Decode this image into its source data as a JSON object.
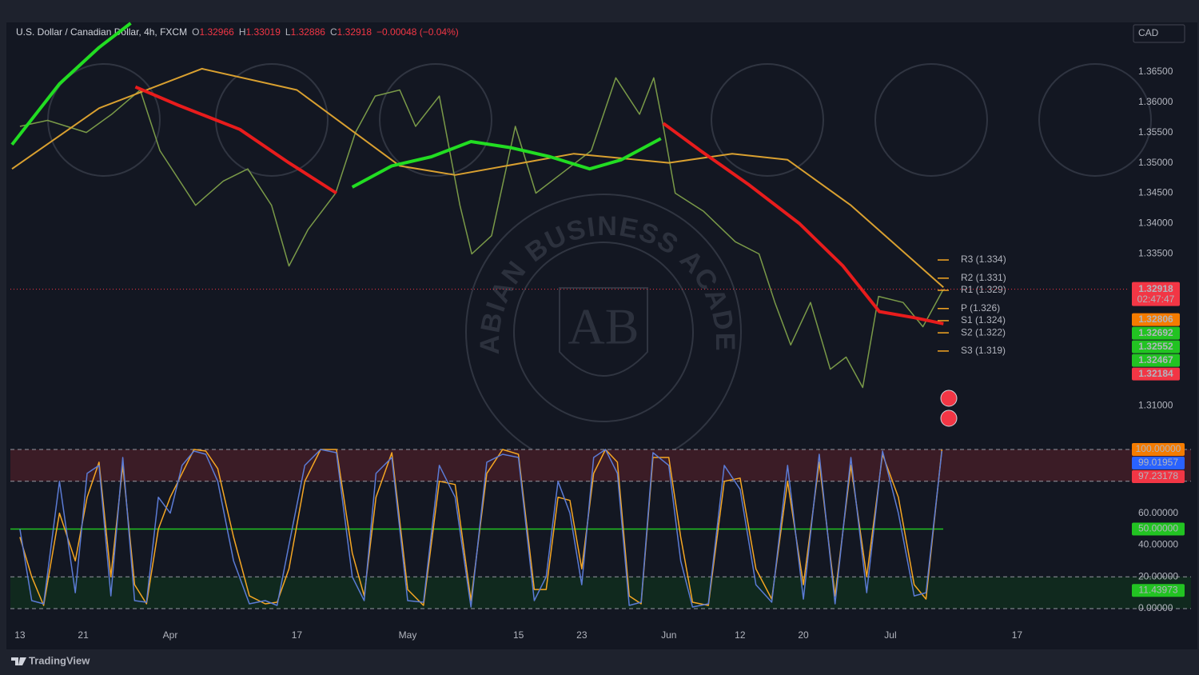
{
  "header": {
    "symbol": "U.S. Dollar / Canadian Dollar, 4h, FXCM",
    "ohlc": [
      {
        "label": "O",
        "value": 1.32966
      },
      {
        "label": "H",
        "value": 1.33019
      },
      {
        "label": "L",
        "value": 1.32886
      },
      {
        "label": "C",
        "value": 1.32918
      }
    ],
    "change": "−0.00048 (−0.04%)",
    "currency": "CAD"
  },
  "chart_data": [
    {
      "type": "line",
      "xlim": [
        -1.2,
        139.9
      ],
      "xticks": [
        {
          "value": 0,
          "label": "13"
        },
        {
          "value": 8,
          "label": "21"
        },
        {
          "value": 19,
          "label": "Apr"
        },
        {
          "value": 35,
          "label": "17"
        },
        {
          "value": 49,
          "label": "May"
        },
        {
          "value": 63,
          "label": "15"
        },
        {
          "value": 71,
          "label": "23"
        },
        {
          "value": 82,
          "label": "Jun"
        },
        {
          "value": 91,
          "label": "12"
        },
        {
          "value": 99,
          "label": "20"
        },
        {
          "value": 110,
          "label": "Jul"
        },
        {
          "value": 126,
          "label": "17"
        }
      ],
      "ylim": [
        1.307,
        1.373
      ],
      "yticks": [
        {
          "value": 1.365,
          "label": "1.36500"
        },
        {
          "value": 1.36,
          "label": "1.36000"
        },
        {
          "value": 1.355,
          "label": "1.35500"
        },
        {
          "value": 1.35,
          "label": "1.35000"
        },
        {
          "value": 1.345,
          "label": "1.34500"
        },
        {
          "value": 1.34,
          "label": "1.34000"
        },
        {
          "value": 1.335,
          "label": "1.33500"
        },
        {
          "value": 1.31,
          "label": "1.31000"
        }
      ],
      "grid": false,
      "series": [
        {
          "color": "#7a9a48",
          "width": 1.5,
          "x": [
            0,
            3.5,
            8.4,
            11.6,
            15.2,
            17.7,
            22.2,
            25.7,
            28.8,
            31.8,
            34,
            36.4,
            39.9,
            42.4,
            44.9,
            48,
            50,
            53,
            55.6,
            57.1,
            59.6,
            62.6,
            65.2,
            68.2,
            72.2,
            75.3,
            78.3,
            80.1,
            81.3,
            82.8,
            86.4,
            90.4,
            93.4,
            95.4,
            97.4,
            99.9,
            102.4,
            104.4,
            106.5,
            108.5,
            111.6,
            114.1,
            116.7
          ],
          "values": [
            1.356,
            1.357,
            1.355,
            1.358,
            1.362,
            1.352,
            1.343,
            1.347,
            1.349,
            1.343,
            1.333,
            1.339,
            1.345,
            1.355,
            1.361,
            1.362,
            1.356,
            1.361,
            1.343,
            1.335,
            1.338,
            1.356,
            1.345,
            1.348,
            1.352,
            1.364,
            1.358,
            1.364,
            1.356,
            1.345,
            1.342,
            1.337,
            1.335,
            1.327,
            1.32,
            1.327,
            1.316,
            1.318,
            1.313,
            1.328,
            1.327,
            1.323,
            1.3292
          ]
        },
        {
          "color": "#d9a030",
          "width": 2,
          "x": [
            -1,
            10,
            23,
            35,
            48,
            55,
            70,
            82,
            90,
            97,
            105,
            116.7
          ],
          "values": [
            1.349,
            1.359,
            1.3655,
            1.362,
            1.3495,
            1.348,
            1.3515,
            1.35,
            1.3515,
            1.3505,
            1.343,
            1.3295
          ]
        },
        {
          "color": "#e81c1c",
          "width": 4,
          "x": [
            14.6,
            20,
            27.8,
            34,
            40,
            60,
            81.3,
            86,
            92,
            98.5,
            104,
            108.6,
            113,
            116.7
          ],
          "values": [
            1.3625,
            1.3595,
            1.3555,
            1.35,
            1.345,
            null,
            1.3565,
            1.352,
            1.3465,
            1.34,
            1.333,
            1.3255,
            1.3245,
            1.3235
          ]
        },
        {
          "color": "#22dd22",
          "width": 4,
          "x": [
            -1,
            5,
            10,
            14,
            28,
            42,
            47,
            52,
            57,
            62,
            67,
            72,
            76,
            81
          ],
          "values": [
            1.353,
            1.363,
            1.369,
            1.373,
            null,
            1.346,
            1.3495,
            1.351,
            1.3535,
            1.3525,
            1.351,
            1.349,
            1.3505,
            1.354
          ]
        }
      ],
      "last_price": {
        "value": 1.32918,
        "countdown": "02:47:47",
        "color": "#f23645"
      },
      "price_tags": [
        {
          "value": 1.32806,
          "color": "#f57c00"
        },
        {
          "value": 1.32692,
          "color": "#22c322"
        },
        {
          "value": 1.32552,
          "color": "#22c322"
        },
        {
          "value": 1.32467,
          "color": "#22c322"
        },
        {
          "value": 1.32184,
          "color": "#f23645"
        }
      ],
      "pivots": [
        {
          "value": 1.334,
          "label": "R3 (1.334)"
        },
        {
          "value": 1.331,
          "label": "R2 (1.331)"
        },
        {
          "value": 1.329,
          "label": "R1 (1.329)"
        },
        {
          "value": 1.326,
          "label": "P (1.326)"
        },
        {
          "value": 1.324,
          "label": "S1 (1.324)"
        },
        {
          "value": 1.322,
          "label": "S2 (1.322)"
        },
        {
          "value": 1.319,
          "label": "S3 (1.319)"
        }
      ]
    },
    {
      "type": "line",
      "xlim": [
        -1.2,
        139.9
      ],
      "ylim": [
        0,
        100
      ],
      "yticks": [
        {
          "value": 60,
          "label": "60.00000"
        },
        {
          "value": 40,
          "label": "40.00000"
        },
        {
          "value": 20,
          "label": "20.00000"
        },
        {
          "value": 0,
          "label": "0.00000"
        }
      ],
      "levels": [
        100,
        80,
        20,
        0
      ],
      "series": [
        {
          "color": "#f5a623",
          "width": 1.5,
          "x": [
            0,
            1.5,
            3,
            5,
            7,
            8.5,
            10,
            11.5,
            13,
            14.5,
            16,
            17.5,
            19,
            20.5,
            22,
            23.5,
            25,
            27,
            29,
            31,
            32.5,
            34,
            36,
            38,
            40,
            42,
            43.5,
            45,
            47,
            49,
            51,
            53,
            55,
            57,
            59,
            61,
            63,
            65,
            66.5,
            68,
            69.5,
            71,
            72.5,
            74,
            75.5,
            77,
            78.5,
            80,
            82,
            83.5,
            85,
            87,
            89,
            91,
            93,
            95,
            97,
            99,
            101,
            103,
            105,
            107,
            109,
            111,
            113,
            114.5,
            116.5
          ],
          "values": [
            45,
            20,
            2,
            60,
            30,
            70,
            92,
            20,
            90,
            15,
            3,
            50,
            70,
            85,
            100,
            99,
            88,
            45,
            8,
            3,
            4,
            25,
            80,
            100,
            100,
            35,
            8,
            70,
            98,
            12,
            2,
            80,
            78,
            5,
            85,
            100,
            97,
            12,
            12,
            70,
            68,
            25,
            85,
            100,
            92,
            8,
            3,
            95,
            95,
            45,
            4,
            2,
            80,
            82,
            25,
            6,
            80,
            15,
            92,
            8,
            90,
            20,
            97,
            70,
            15,
            6,
            100
          ]
        },
        {
          "color": "#5b7bd5",
          "width": 1.5,
          "x": [
            0,
            1.5,
            3,
            5,
            7,
            8.5,
            10,
            11.5,
            13,
            14.5,
            16,
            17.5,
            19,
            20.5,
            22,
            23.5,
            25,
            27,
            29,
            31,
            32.5,
            34,
            36,
            38,
            40,
            42,
            43.5,
            45,
            47,
            49,
            51,
            53,
            55,
            57,
            59,
            61,
            63,
            65,
            66.5,
            68,
            69.5,
            71,
            72.5,
            74,
            75.5,
            77,
            78.5,
            80,
            82,
            83.5,
            85,
            87,
            89,
            91,
            93,
            95,
            97,
            99,
            101,
            103,
            105,
            107,
            109,
            111,
            113,
            114.5,
            116.5
          ],
          "values": [
            50,
            5,
            3,
            80,
            10,
            85,
            90,
            8,
            95,
            5,
            4,
            70,
            60,
            90,
            99,
            97,
            80,
            30,
            3,
            5,
            2,
            40,
            90,
            100,
            98,
            20,
            5,
            85,
            95,
            5,
            4,
            90,
            70,
            1,
            92,
            97,
            95,
            5,
            20,
            80,
            60,
            15,
            95,
            100,
            85,
            2,
            4,
            98,
            90,
            30,
            1,
            3,
            90,
            75,
            15,
            4,
            90,
            6,
            97,
            3,
            95,
            10,
            99,
            60,
            8,
            10,
            99.01957
          ]
        }
      ],
      "tags": [
        {
          "value": 100,
          "label": "100.00000",
          "color": "#f57c00"
        },
        {
          "value": 99.01957,
          "label": "99.01957",
          "color": "#2962ff"
        },
        {
          "value": 97.23178,
          "label": "97.23178",
          "color": "#f23645"
        },
        {
          "value": 50,
          "label": "50.00000",
          "color": "#22c322"
        },
        {
          "value": 11.43973,
          "label": "11.43973",
          "color": "#22c322"
        }
      ]
    }
  ],
  "watermark": {
    "brand": "ARABIAN BUSINESS ACADEMY",
    "logo": "AB"
  },
  "footer": {
    "logo": "TradingView"
  }
}
